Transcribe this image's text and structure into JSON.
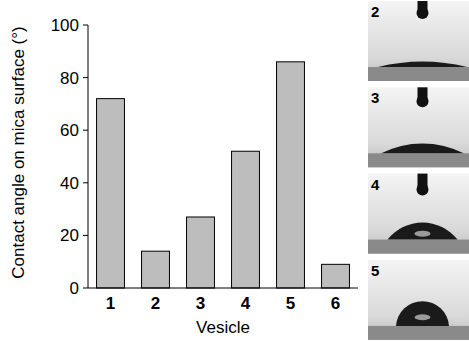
{
  "chart_data": {
    "type": "bar",
    "x_label": "Vesicle",
    "y_label": "Contact angle on mica surface (°)",
    "categories": [
      "1",
      "2",
      "3",
      "4",
      "5",
      "6"
    ],
    "values": [
      72,
      14,
      27,
      52,
      86,
      9
    ],
    "color": "#bdbdbd",
    "ylim": [
      0,
      100
    ],
    "yticks": [
      0,
      20,
      40,
      60,
      80,
      100
    ],
    "grid": false,
    "annotations": [
      "2",
      "3",
      "4",
      "5"
    ]
  }
}
